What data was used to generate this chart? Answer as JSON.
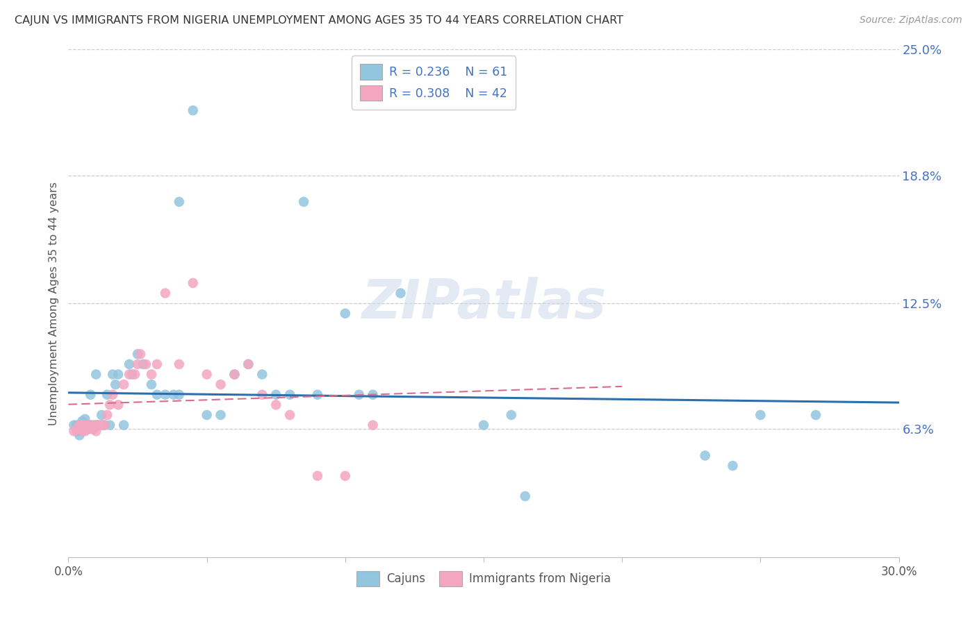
{
  "title": "CAJUN VS IMMIGRANTS FROM NIGERIA UNEMPLOYMENT AMONG AGES 35 TO 44 YEARS CORRELATION CHART",
  "source": "Source: ZipAtlas.com",
  "ylabel_text": "Unemployment Among Ages 35 to 44 years",
  "legend_labels": [
    "Cajuns",
    "Immigrants from Nigeria"
  ],
  "cajun_R": "0.236",
  "cajun_N": "61",
  "nigeria_R": "0.308",
  "nigeria_N": "42",
  "cajun_color": "#92c5de",
  "nigeria_color": "#f4a6c0",
  "cajun_line_color": "#2c6fad",
  "nigeria_line_color": "#d96b8c",
  "watermark": "ZIPatlas",
  "xlim": [
    0.0,
    0.3
  ],
  "ylim": [
    0.0,
    0.25
  ],
  "ytick_positions": [
    0.063,
    0.125,
    0.188,
    0.25
  ],
  "ytick_labels": [
    "6.3%",
    "12.5%",
    "18.8%",
    "25.0%"
  ],
  "xtick_positions": [
    0.0,
    0.05,
    0.1,
    0.15,
    0.2,
    0.25,
    0.3
  ],
  "xtick_labels": [
    "0.0%",
    "",
    "",
    "",
    "",
    "",
    "30.0%"
  ],
  "cajun_x": [
    0.002,
    0.003,
    0.003,
    0.004,
    0.004,
    0.004,
    0.005,
    0.005,
    0.005,
    0.006,
    0.006,
    0.007,
    0.007,
    0.007,
    0.008,
    0.008,
    0.009,
    0.009,
    0.01,
    0.01,
    0.011,
    0.012,
    0.012,
    0.013,
    0.014,
    0.015,
    0.016,
    0.017,
    0.018,
    0.02,
    0.022,
    0.023,
    0.025,
    0.027,
    0.03,
    0.032,
    0.035,
    0.038,
    0.04,
    0.045,
    0.05,
    0.055,
    0.06,
    0.065,
    0.07,
    0.04,
    0.075,
    0.08,
    0.085,
    0.09,
    0.1,
    0.105,
    0.11,
    0.12,
    0.15,
    0.16,
    0.165,
    0.23,
    0.24,
    0.25,
    0.27
  ],
  "cajun_y": [
    0.065,
    0.062,
    0.065,
    0.063,
    0.065,
    0.06,
    0.065,
    0.063,
    0.067,
    0.065,
    0.068,
    0.065,
    0.063,
    0.065,
    0.065,
    0.08,
    0.065,
    0.063,
    0.065,
    0.09,
    0.065,
    0.065,
    0.07,
    0.065,
    0.08,
    0.065,
    0.09,
    0.085,
    0.09,
    0.065,
    0.095,
    0.09,
    0.1,
    0.095,
    0.085,
    0.08,
    0.08,
    0.08,
    0.08,
    0.22,
    0.07,
    0.07,
    0.09,
    0.095,
    0.09,
    0.175,
    0.08,
    0.08,
    0.175,
    0.08,
    0.12,
    0.08,
    0.08,
    0.13,
    0.065,
    0.07,
    0.03,
    0.05,
    0.045,
    0.07,
    0.07
  ],
  "nigeria_x": [
    0.002,
    0.003,
    0.004,
    0.004,
    0.005,
    0.005,
    0.006,
    0.006,
    0.007,
    0.007,
    0.008,
    0.009,
    0.01,
    0.01,
    0.011,
    0.012,
    0.013,
    0.014,
    0.015,
    0.016,
    0.018,
    0.02,
    0.022,
    0.024,
    0.025,
    0.026,
    0.028,
    0.03,
    0.032,
    0.035,
    0.04,
    0.045,
    0.05,
    0.055,
    0.06,
    0.065,
    0.07,
    0.075,
    0.08,
    0.09,
    0.1,
    0.11
  ],
  "nigeria_y": [
    0.062,
    0.063,
    0.063,
    0.065,
    0.065,
    0.062,
    0.065,
    0.062,
    0.065,
    0.063,
    0.065,
    0.063,
    0.065,
    0.062,
    0.065,
    0.065,
    0.065,
    0.07,
    0.075,
    0.08,
    0.075,
    0.085,
    0.09,
    0.09,
    0.095,
    0.1,
    0.095,
    0.09,
    0.095,
    0.13,
    0.095,
    0.135,
    0.09,
    0.085,
    0.09,
    0.095,
    0.08,
    0.075,
    0.07,
    0.04,
    0.04,
    0.065
  ]
}
